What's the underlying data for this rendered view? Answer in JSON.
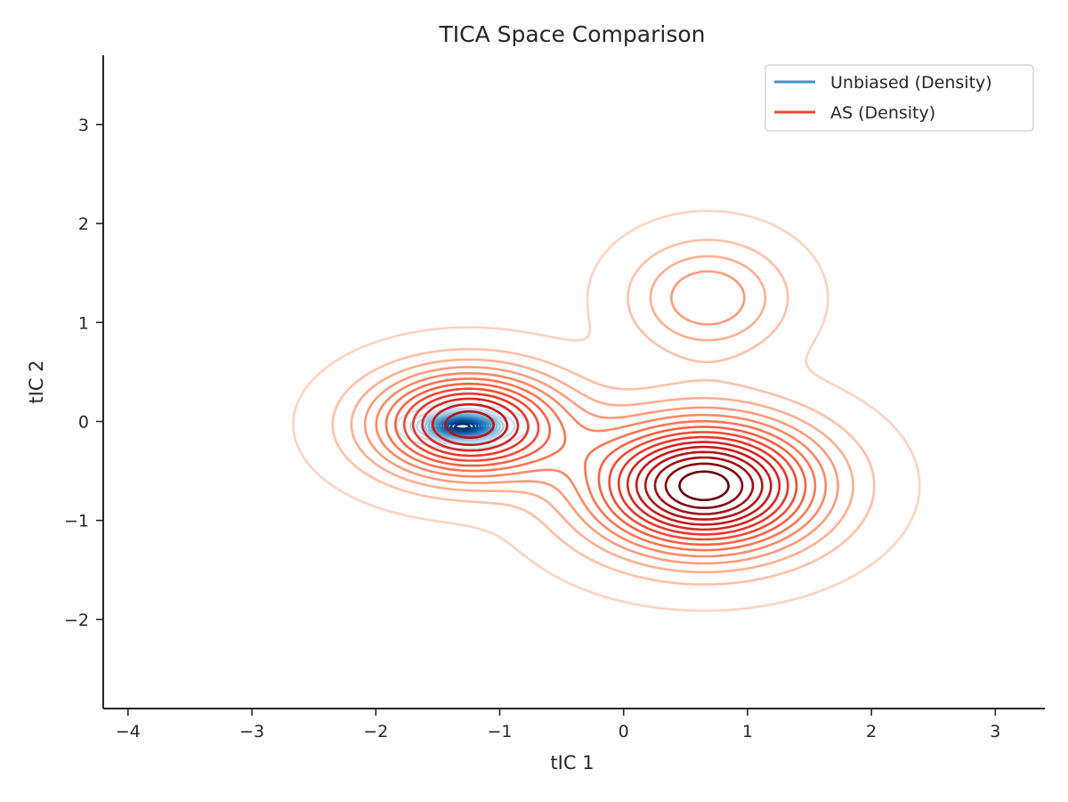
{
  "chart_data": {
    "type": "contour",
    "title": "TICA Space Comparison",
    "xlabel": "tIC 1",
    "ylabel": "tIC 2",
    "xlim": [
      -4.2,
      3.4
    ],
    "ylim": [
      -2.9,
      3.7
    ],
    "xticks": [
      -4,
      -3,
      -2,
      -1,
      0,
      1,
      2,
      3
    ],
    "yticks": [
      -2,
      -1,
      0,
      1,
      2,
      3
    ],
    "xtick_labels": [
      "−4",
      "−3",
      "−2",
      "−1",
      "0",
      "1",
      "2",
      "3"
    ],
    "ytick_labels": [
      "−2",
      "−1",
      "0",
      "1",
      "2",
      "3"
    ],
    "grid": false,
    "legend_position": "top-right",
    "series": [
      {
        "name": "Unbiased (Density)",
        "color": "#4292c6",
        "colormap": "Blues",
        "levels": 15,
        "modes": [
          {
            "center": [
              -1.3,
              -0.05
            ],
            "sigma": [
              0.19,
              0.08
            ],
            "weight": 1.0
          }
        ]
      },
      {
        "name": "AS (Density)",
        "color": "#e34a33",
        "colormap": "Reds",
        "levels": 15,
        "modes": [
          {
            "center": [
              -1.25,
              -0.03
            ],
            "sigma": [
              0.52,
              0.36
            ],
            "weight": 1.0
          },
          {
            "center": [
              0.65,
              -0.65
            ],
            "sigma": [
              0.62,
              0.45
            ],
            "weight": 1.25
          },
          {
            "center": [
              0.68,
              1.25
            ],
            "sigma": [
              0.42,
              0.38
            ],
            "weight": 0.35
          }
        ]
      }
    ]
  }
}
